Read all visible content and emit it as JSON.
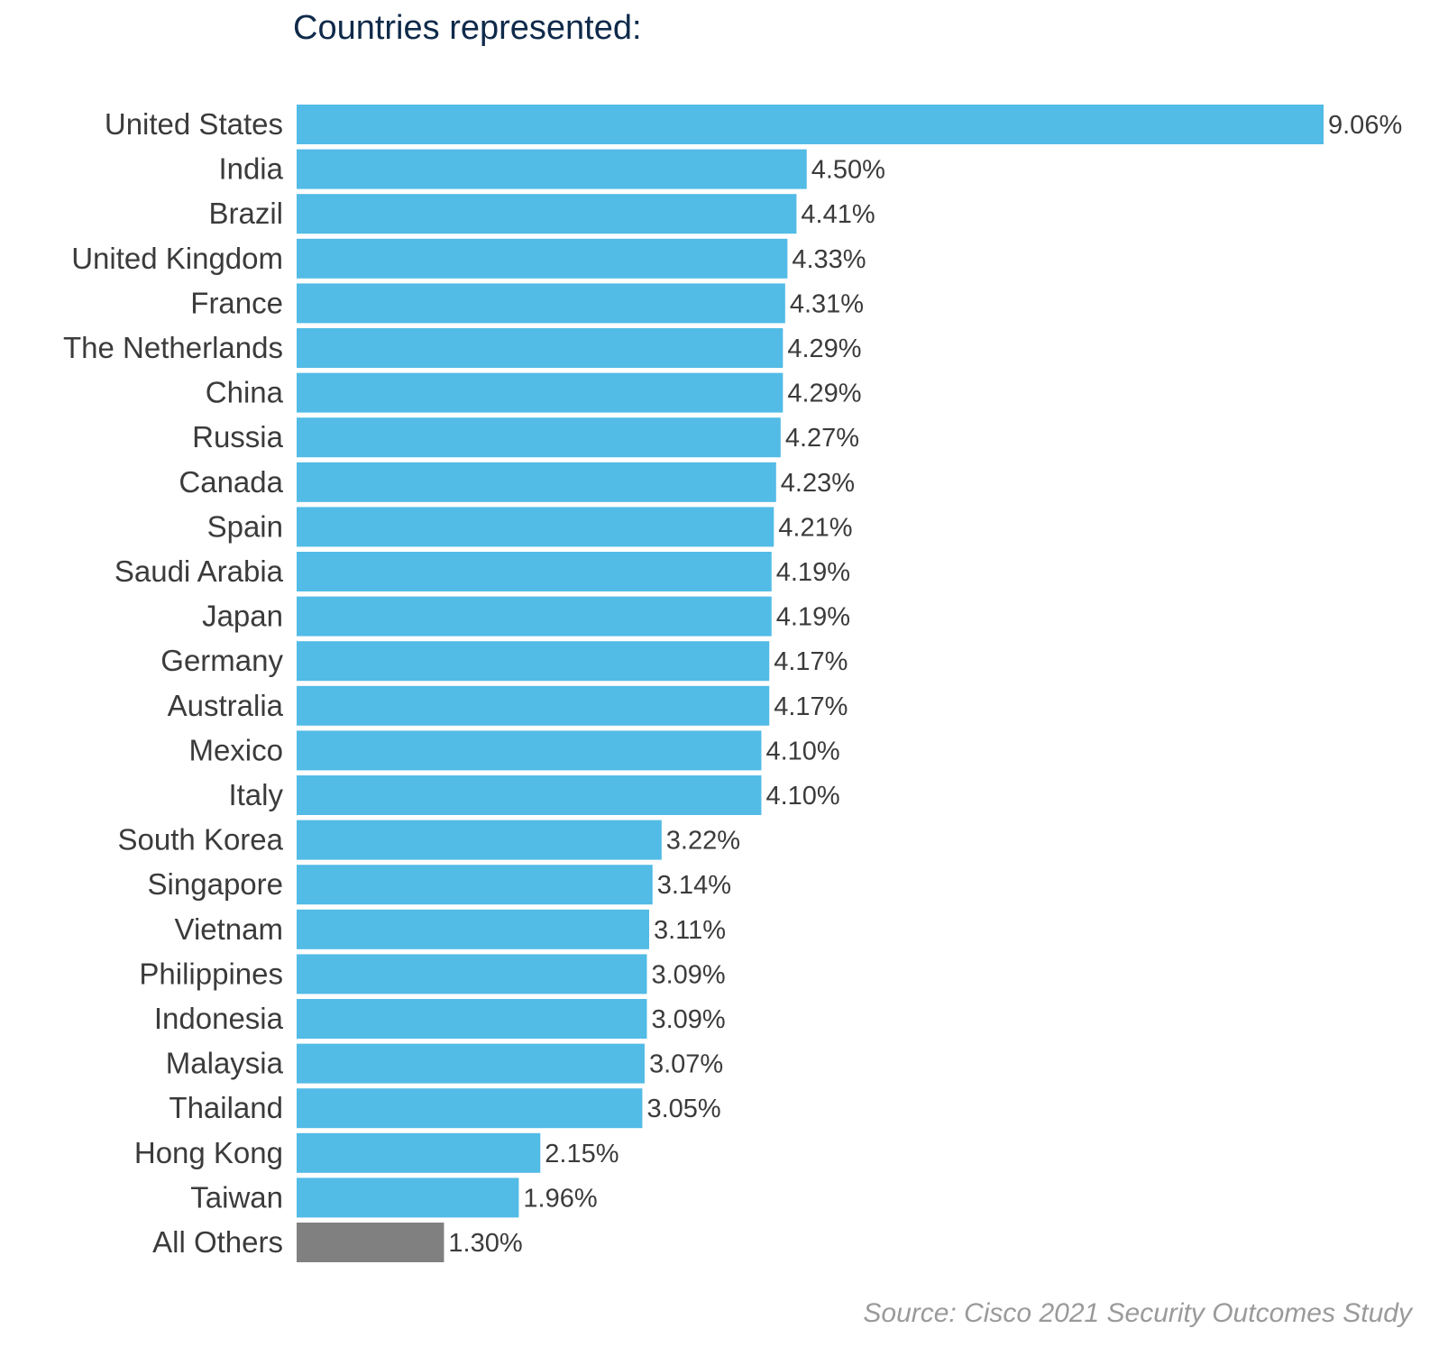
{
  "chart_data": {
    "type": "bar",
    "orientation": "horizontal",
    "title": "Countries represented:",
    "categories": [
      "United States",
      "India",
      "Brazil",
      "United Kingdom",
      "France",
      "The Netherlands",
      "China",
      "Russia",
      "Canada",
      "Spain",
      "Saudi Arabia",
      "Japan",
      "Germany",
      "Australia",
      "Mexico",
      "Italy",
      "South Korea",
      "Singapore",
      "Vietnam",
      "Philippines",
      "Indonesia",
      "Malaysia",
      "Thailand",
      "Hong Kong",
      "Taiwan",
      "All Others"
    ],
    "values": [
      9.06,
      4.5,
      4.41,
      4.33,
      4.31,
      4.29,
      4.29,
      4.27,
      4.23,
      4.21,
      4.19,
      4.19,
      4.17,
      4.17,
      4.1,
      4.1,
      3.22,
      3.14,
      3.11,
      3.09,
      3.09,
      3.07,
      3.05,
      2.15,
      1.96,
      1.3
    ],
    "value_labels": [
      "9.06%",
      "4.50%",
      "4.41%",
      "4.33%",
      "4.31%",
      "4.29%",
      "4.29%",
      "4.27%",
      "4.23%",
      "4.21%",
      "4.19%",
      "4.19%",
      "4.17%",
      "4.17%",
      "4.10%",
      "4.10%",
      "3.22%",
      "3.14%",
      "3.11%",
      "3.09%",
      "3.09%",
      "3.07%",
      "3.05%",
      "2.15%",
      "1.96%",
      "1.30%"
    ],
    "colors": {
      "default": "#52bbe6",
      "others": "#808080"
    },
    "xlim": [
      0,
      9.06
    ],
    "grid": false,
    "legend": "none"
  },
  "source": "Source: Cisco 2021 Security Outcomes Study"
}
